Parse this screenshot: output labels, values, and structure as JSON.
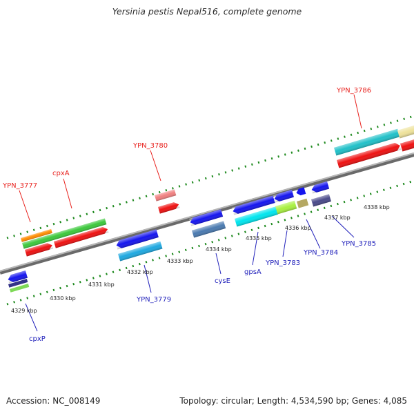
{
  "title": "Yersinia pestis Nepal516, complete genome",
  "footer": {
    "accession": "Accession: NC_008149",
    "summary": "Topology: circular; Length: 4,534,590 bp; Genes: 4,085"
  },
  "scale_ticks": [
    "4329 kbp",
    "4330 kbp",
    "4331 kbp",
    "4332 kbp",
    "4333 kbp",
    "4334 kbp",
    "4335 kbp",
    "4336 kbp",
    "4337 kbp",
    "4338 kbp"
  ],
  "labels_forward": [
    "YPN_3777",
    "cpxA",
    "YPN_3780",
    "YPN_3786"
  ],
  "labels_reverse": [
    "cpxP",
    "YPN_3779",
    "cysE",
    "gpsA",
    "YPN_3783",
    "YPN_3784",
    "YPN_3785"
  ],
  "colors": {
    "forward_label": "#e8201c",
    "reverse_label": "#2222bb",
    "backbone": "#8a8a8a",
    "tick": "#1f8a1f"
  }
}
